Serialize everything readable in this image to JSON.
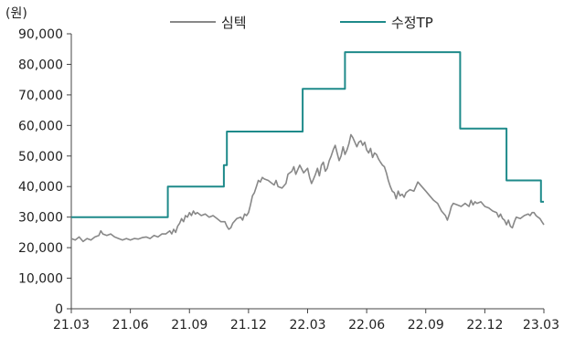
{
  "chart_data": {
    "type": "line",
    "unit_label": "(원)",
    "y_ticks": [
      "0",
      "10,000",
      "20,000",
      "30,000",
      "40,000",
      "50,000",
      "60,000",
      "70,000",
      "80,000",
      "90,000"
    ],
    "ylim": [
      0,
      90000
    ],
    "x_ticks": [
      "21.03",
      "21.06",
      "21.09",
      "21.12",
      "22.03",
      "22.06",
      "22.09",
      "22.12",
      "23.03"
    ],
    "xlim": [
      0,
      24
    ],
    "grid": false,
    "legend_position": "top",
    "series": [
      {
        "name": "심텍",
        "color": "#888888",
        "style": "line",
        "points": [
          [
            0.0,
            23000
          ],
          [
            0.2,
            22500
          ],
          [
            0.4,
            23500
          ],
          [
            0.6,
            22000
          ],
          [
            0.8,
            23000
          ],
          [
            1.0,
            22500
          ],
          [
            1.2,
            23500
          ],
          [
            1.4,
            24000
          ],
          [
            1.5,
            25500
          ],
          [
            1.6,
            24500
          ],
          [
            1.8,
            24000
          ],
          [
            2.0,
            24500
          ],
          [
            2.2,
            23500
          ],
          [
            2.4,
            23000
          ],
          [
            2.6,
            22500
          ],
          [
            2.8,
            23000
          ],
          [
            3.0,
            22500
          ],
          [
            3.2,
            23000
          ],
          [
            3.4,
            22800
          ],
          [
            3.6,
            23300
          ],
          [
            3.8,
            23500
          ],
          [
            4.0,
            23000
          ],
          [
            4.2,
            24000
          ],
          [
            4.4,
            23500
          ],
          [
            4.6,
            24500
          ],
          [
            4.8,
            24500
          ],
          [
            5.0,
            25500
          ],
          [
            5.1,
            24500
          ],
          [
            5.2,
            26000
          ],
          [
            5.3,
            25000
          ],
          [
            5.4,
            27000
          ],
          [
            5.5,
            28000
          ],
          [
            5.6,
            29500
          ],
          [
            5.7,
            28500
          ],
          [
            5.8,
            30500
          ],
          [
            5.9,
            30000
          ],
          [
            6.0,
            31500
          ],
          [
            6.1,
            30500
          ],
          [
            6.2,
            32000
          ],
          [
            6.3,
            31000
          ],
          [
            6.4,
            31500
          ],
          [
            6.6,
            30500
          ],
          [
            6.8,
            31000
          ],
          [
            7.0,
            30000
          ],
          [
            7.2,
            30500
          ],
          [
            7.4,
            29500
          ],
          [
            7.6,
            28500
          ],
          [
            7.8,
            28500
          ],
          [
            7.9,
            27000
          ],
          [
            8.0,
            26000
          ],
          [
            8.1,
            26500
          ],
          [
            8.2,
            28000
          ],
          [
            8.4,
            29500
          ],
          [
            8.6,
            30000
          ],
          [
            8.7,
            29000
          ],
          [
            8.8,
            31000
          ],
          [
            8.9,
            30500
          ],
          [
            9.0,
            31500
          ],
          [
            9.1,
            34000
          ],
          [
            9.2,
            37000
          ],
          [
            9.3,
            38000
          ],
          [
            9.4,
            40000
          ],
          [
            9.5,
            42000
          ],
          [
            9.6,
            41500
          ],
          [
            9.7,
            43000
          ],
          [
            9.8,
            42500
          ],
          [
            10.0,
            42000
          ],
          [
            10.2,
            41000
          ],
          [
            10.3,
            40500
          ],
          [
            10.4,
            42000
          ],
          [
            10.5,
            40000
          ],
          [
            10.7,
            39500
          ],
          [
            10.9,
            41000
          ],
          [
            11.0,
            44000
          ],
          [
            11.2,
            45000
          ],
          [
            11.3,
            46500
          ],
          [
            11.4,
            44000
          ],
          [
            11.5,
            45500
          ],
          [
            11.6,
            47000
          ],
          [
            11.8,
            44500
          ],
          [
            12.0,
            46000
          ],
          [
            12.1,
            43000
          ],
          [
            12.2,
            41000
          ],
          [
            12.3,
            42500
          ],
          [
            12.4,
            44000
          ],
          [
            12.5,
            46000
          ],
          [
            12.6,
            43500
          ],
          [
            12.7,
            47000
          ],
          [
            12.8,
            48000
          ],
          [
            12.9,
            45000
          ],
          [
            13.0,
            46000
          ],
          [
            13.1,
            48500
          ],
          [
            13.2,
            50000
          ],
          [
            13.3,
            52000
          ],
          [
            13.4,
            53500
          ],
          [
            13.5,
            51000
          ],
          [
            13.6,
            48500
          ],
          [
            13.7,
            50000
          ],
          [
            13.8,
            53000
          ],
          [
            13.9,
            50500
          ],
          [
            14.0,
            52000
          ],
          [
            14.1,
            54000
          ],
          [
            14.2,
            57000
          ],
          [
            14.3,
            56000
          ],
          [
            14.4,
            54500
          ],
          [
            14.5,
            53000
          ],
          [
            14.6,
            54500
          ],
          [
            14.7,
            55000
          ],
          [
            14.8,
            53500
          ],
          [
            14.9,
            54500
          ],
          [
            15.0,
            52000
          ],
          [
            15.1,
            51000
          ],
          [
            15.2,
            52500
          ],
          [
            15.3,
            49500
          ],
          [
            15.4,
            51000
          ],
          [
            15.5,
            50500
          ],
          [
            15.6,
            49000
          ],
          [
            15.7,
            48000
          ],
          [
            15.8,
            47000
          ],
          [
            15.9,
            46500
          ],
          [
            16.0,
            44500
          ],
          [
            16.1,
            42000
          ],
          [
            16.2,
            40000
          ],
          [
            16.3,
            38500
          ],
          [
            16.4,
            38000
          ],
          [
            16.5,
            36000
          ],
          [
            16.6,
            38500
          ],
          [
            16.7,
            37000
          ],
          [
            16.8,
            37500
          ],
          [
            16.9,
            36500
          ],
          [
            17.0,
            38000
          ],
          [
            17.2,
            39000
          ],
          [
            17.4,
            38500
          ],
          [
            17.6,
            41500
          ],
          [
            17.8,
            40000
          ],
          [
            18.0,
            38500
          ],
          [
            18.2,
            37000
          ],
          [
            18.4,
            35500
          ],
          [
            18.6,
            34500
          ],
          [
            18.8,
            32000
          ],
          [
            19.0,
            30500
          ],
          [
            19.1,
            29000
          ],
          [
            19.2,
            31000
          ],
          [
            19.3,
            33500
          ],
          [
            19.4,
            34500
          ],
          [
            19.6,
            34000
          ],
          [
            19.8,
            33500
          ],
          [
            20.0,
            34500
          ],
          [
            20.2,
            33500
          ],
          [
            20.3,
            35500
          ],
          [
            20.4,
            34000
          ],
          [
            20.5,
            35000
          ],
          [
            20.6,
            34500
          ],
          [
            20.8,
            35000
          ],
          [
            21.0,
            33500
          ],
          [
            21.2,
            33000
          ],
          [
            21.4,
            32000
          ],
          [
            21.6,
            31500
          ],
          [
            21.7,
            30000
          ],
          [
            21.8,
            31000
          ],
          [
            21.9,
            29500
          ],
          [
            22.0,
            29000
          ],
          [
            22.1,
            27500
          ],
          [
            22.2,
            29000
          ],
          [
            22.3,
            27000
          ],
          [
            22.4,
            26500
          ],
          [
            22.5,
            28500
          ],
          [
            22.6,
            30000
          ],
          [
            22.8,
            29500
          ],
          [
            23.0,
            30500
          ],
          [
            23.2,
            31000
          ],
          [
            23.3,
            30500
          ],
          [
            23.4,
            31500
          ],
          [
            23.5,
            31500
          ],
          [
            23.6,
            30500
          ],
          [
            23.7,
            30000
          ],
          [
            23.8,
            29500
          ],
          [
            23.9,
            28500
          ],
          [
            24.0,
            27500
          ]
        ]
      },
      {
        "name": "수정TP",
        "color": "#1e8a8a",
        "style": "step",
        "points": [
          [
            0.0,
            30000
          ],
          [
            4.9,
            30000
          ],
          [
            4.9,
            40000
          ],
          [
            7.75,
            40000
          ],
          [
            7.75,
            47000
          ],
          [
            7.9,
            47000
          ],
          [
            7.9,
            58000
          ],
          [
            11.75,
            58000
          ],
          [
            11.75,
            72000
          ],
          [
            13.9,
            72000
          ],
          [
            13.9,
            84000
          ],
          [
            19.75,
            84000
          ],
          [
            19.75,
            59000
          ],
          [
            22.1,
            59000
          ],
          [
            22.1,
            42000
          ],
          [
            23.85,
            42000
          ],
          [
            23.85,
            35000
          ],
          [
            24.0,
            35000
          ]
        ]
      }
    ]
  }
}
